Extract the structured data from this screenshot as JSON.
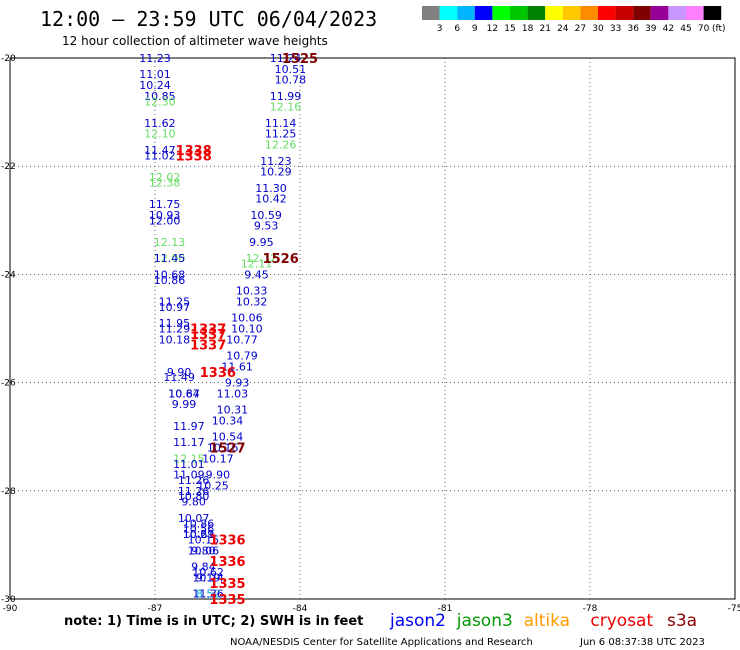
{
  "chart_data": {
    "type": "scatter",
    "title": "12:00 – 23:59 UTC 06/04/2023",
    "subtitle": "12 hour collection of altimeter wave heights",
    "xlim": [
      -90,
      -75
    ],
    "ylim": [
      -30,
      -20
    ],
    "x_ticks": [
      "-90",
      "-87",
      "-84",
      "-81",
      "-78",
      "-75"
    ],
    "y_ticks": [
      "-20",
      "-22",
      "-24",
      "-26",
      "-28",
      "-30"
    ],
    "grid": true,
    "color_scale": {
      "unit": "(ft)",
      "labels": [
        "3",
        "6",
        "9",
        "12",
        "15",
        "18",
        "21",
        "24",
        "27",
        "30",
        "33",
        "36",
        "39",
        "42",
        "45",
        "70"
      ],
      "colors": [
        "#808080",
        "#00ffff",
        "#00b4ff",
        "#0000ff",
        "#00ff00",
        "#00c800",
        "#008000",
        "#ffff00",
        "#ffc800",
        "#ff8c00",
        "#ff0000",
        "#c80000",
        "#800000",
        "#960096",
        "#c896ff",
        "#ff80ff",
        "#000000"
      ]
    },
    "wave_heights": [
      {
        "x": -87.0,
        "y": -20.0,
        "text": "11.23",
        "color": "#0000cc"
      },
      {
        "x": -87.0,
        "y": -20.3,
        "text": "11.01",
        "color": "#0000cc"
      },
      {
        "x": -87.0,
        "y": -20.5,
        "text": "10.24",
        "color": "#0000cc"
      },
      {
        "x": -86.9,
        "y": -20.7,
        "text": "10.85",
        "color": "#0000cc"
      },
      {
        "x": -86.9,
        "y": -20.8,
        "text": "12.30",
        "color": "#66dd66"
      },
      {
        "x": -86.9,
        "y": -21.2,
        "text": "11.62",
        "color": "#0000cc"
      },
      {
        "x": -86.9,
        "y": -21.4,
        "text": "12.10",
        "color": "#66dd66"
      },
      {
        "x": -86.9,
        "y": -21.7,
        "text": "11.47",
        "color": "#0000cc"
      },
      {
        "x": -86.9,
        "y": -21.8,
        "text": "11.02",
        "color": "#0000cc"
      },
      {
        "x": -86.8,
        "y": -22.2,
        "text": "12.02",
        "color": "#66dd66"
      },
      {
        "x": -86.8,
        "y": -22.3,
        "text": "12.38",
        "color": "#66dd66"
      },
      {
        "x": -86.8,
        "y": -22.7,
        "text": "11.75",
        "color": "#0000cc"
      },
      {
        "x": -86.8,
        "y": -22.9,
        "text": "10.93",
        "color": "#0000cc"
      },
      {
        "x": -86.8,
        "y": -23.0,
        "text": "12.00",
        "color": "#0000cc"
      },
      {
        "x": -86.7,
        "y": -23.4,
        "text": "12.13",
        "color": "#66dd66"
      },
      {
        "x": -86.7,
        "y": -23.7,
        "text": "12.00",
        "color": "#66dd66"
      },
      {
        "x": -86.7,
        "y": -23.7,
        "text": "11.45",
        "color": "#0000cc"
      },
      {
        "x": -86.7,
        "y": -24.0,
        "text": "10.68",
        "color": "#0000cc"
      },
      {
        "x": -86.7,
        "y": -24.1,
        "text": "10.86",
        "color": "#0000cc"
      },
      {
        "x": -86.6,
        "y": -24.5,
        "text": "11.25",
        "color": "#0000cc"
      },
      {
        "x": -86.6,
        "y": -24.6,
        "text": "10.97",
        "color": "#0000cc"
      },
      {
        "x": -86.6,
        "y": -24.9,
        "text": "11.95",
        "color": "#0000cc"
      },
      {
        "x": -86.6,
        "y": -25.0,
        "text": "11.29",
        "color": "#0000cc"
      },
      {
        "x": -86.6,
        "y": -25.2,
        "text": "10.18",
        "color": "#0000cc"
      },
      {
        "x": -86.5,
        "y": -25.8,
        "text": "9.90",
        "color": "#0000cc"
      },
      {
        "x": -86.5,
        "y": -25.9,
        "text": "11.49",
        "color": "#0000cc"
      },
      {
        "x": -86.4,
        "y": -26.2,
        "text": "10.87",
        "color": "#0000cc"
      },
      {
        "x": -86.4,
        "y": -26.2,
        "text": "10.64",
        "color": "#0000cc"
      },
      {
        "x": -86.4,
        "y": -26.4,
        "text": "9.99",
        "color": "#0000cc"
      },
      {
        "x": -86.3,
        "y": -26.8,
        "text": "11.97",
        "color": "#0000cc"
      },
      {
        "x": -86.3,
        "y": -27.1,
        "text": "11.17",
        "color": "#0000cc"
      },
      {
        "x": -86.3,
        "y": -27.4,
        "text": "12.15",
        "color": "#66dd66"
      },
      {
        "x": -86.3,
        "y": -27.5,
        "text": "11.01",
        "color": "#0000cc"
      },
      {
        "x": -86.3,
        "y": -27.7,
        "text": "11.09",
        "color": "#0000cc"
      },
      {
        "x": -86.2,
        "y": -27.8,
        "text": "11.26",
        "color": "#0000cc"
      },
      {
        "x": -86.2,
        "y": -28.0,
        "text": "11.26",
        "color": "#0000cc"
      },
      {
        "x": -86.2,
        "y": -28.1,
        "text": "10.80",
        "color": "#0000cc"
      },
      {
        "x": -86.2,
        "y": -28.2,
        "text": "9.80",
        "color": "#0000cc"
      },
      {
        "x": -86.2,
        "y": -28.5,
        "text": "10.07",
        "color": "#0000cc"
      },
      {
        "x": -86.1,
        "y": -28.6,
        "text": "10.86",
        "color": "#0000cc"
      },
      {
        "x": -86.1,
        "y": -28.7,
        "text": "10.56",
        "color": "#0000cc"
      },
      {
        "x": -86.1,
        "y": -28.8,
        "text": "10.69",
        "color": "#0000cc"
      },
      {
        "x": -86.1,
        "y": -28.8,
        "text": "10.21",
        "color": "#0000cc"
      },
      {
        "x": -86.0,
        "y": -28.9,
        "text": "10.15",
        "color": "#0000cc"
      },
      {
        "x": -86.0,
        "y": -29.1,
        "text": "9.80",
        "color": "#0000cc"
      },
      {
        "x": -86.0,
        "y": -29.1,
        "text": "10.06",
        "color": "#0000cc"
      },
      {
        "x": -86.0,
        "y": -29.4,
        "text": "9.84",
        "color": "#0000cc"
      },
      {
        "x": -85.9,
        "y": -29.5,
        "text": "10.62",
        "color": "#0000cc"
      },
      {
        "x": -85.9,
        "y": -29.6,
        "text": "10.74",
        "color": "#0000cc"
      },
      {
        "x": -85.9,
        "y": -29.6,
        "text": "9.19",
        "color": "#0000cc"
      },
      {
        "x": -85.9,
        "y": -29.9,
        "text": "8.52",
        "color": "#00aadd"
      },
      {
        "x": -85.9,
        "y": -29.9,
        "text": "11.36",
        "color": "#0000cc"
      },
      {
        "x": -84.3,
        "y": -20.0,
        "text": "11.24",
        "color": "#0000cc"
      },
      {
        "x": -84.2,
        "y": -20.2,
        "text": "10.51",
        "color": "#0000cc"
      },
      {
        "x": -84.2,
        "y": -20.4,
        "text": "10.78",
        "color": "#0000cc"
      },
      {
        "x": -84.3,
        "y": -20.7,
        "text": "11.99",
        "color": "#0000cc"
      },
      {
        "x": -84.3,
        "y": -20.9,
        "text": "12.16",
        "color": "#66dd66"
      },
      {
        "x": -84.4,
        "y": -21.2,
        "text": "11.14",
        "color": "#0000cc"
      },
      {
        "x": -84.4,
        "y": -21.4,
        "text": "11.25",
        "color": "#0000cc"
      },
      {
        "x": -84.4,
        "y": -21.6,
        "text": "12.26",
        "color": "#66dd66"
      },
      {
        "x": -84.5,
        "y": -21.9,
        "text": "11.23",
        "color": "#0000cc"
      },
      {
        "x": -84.5,
        "y": -22.1,
        "text": "10.29",
        "color": "#0000cc"
      },
      {
        "x": -84.6,
        "y": -22.4,
        "text": "11.30",
        "color": "#0000cc"
      },
      {
        "x": -84.6,
        "y": -22.6,
        "text": "10.42",
        "color": "#0000cc"
      },
      {
        "x": -84.7,
        "y": -22.9,
        "text": "10.59",
        "color": "#0000cc"
      },
      {
        "x": -84.7,
        "y": -23.1,
        "text": "9.53",
        "color": "#0000cc"
      },
      {
        "x": -84.8,
        "y": -23.4,
        "text": "9.95",
        "color": "#0000cc"
      },
      {
        "x": -84.8,
        "y": -23.7,
        "text": "12.12",
        "color": "#66dd66"
      },
      {
        "x": -84.9,
        "y": -23.8,
        "text": "12.11",
        "color": "#66dd66"
      },
      {
        "x": -84.9,
        "y": -24.0,
        "text": "9.45",
        "color": "#0000cc"
      },
      {
        "x": -85.0,
        "y": -24.3,
        "text": "10.33",
        "color": "#0000cc"
      },
      {
        "x": -85.0,
        "y": -24.5,
        "text": "10.32",
        "color": "#0000cc"
      },
      {
        "x": -85.1,
        "y": -24.8,
        "text": "10.06",
        "color": "#0000cc"
      },
      {
        "x": -85.1,
        "y": -25.0,
        "text": "10.10",
        "color": "#0000cc"
      },
      {
        "x": -85.2,
        "y": -25.2,
        "text": "10.77",
        "color": "#0000cc"
      },
      {
        "x": -85.2,
        "y": -25.5,
        "text": "10.79",
        "color": "#0000cc"
      },
      {
        "x": -85.3,
        "y": -25.7,
        "text": "11.61",
        "color": "#0000cc"
      },
      {
        "x": -85.3,
        "y": -26.0,
        "text": "9.93",
        "color": "#0000cc"
      },
      {
        "x": -85.4,
        "y": -26.2,
        "text": "11.03",
        "color": "#0000cc"
      },
      {
        "x": -85.4,
        "y": -26.5,
        "text": "10.31",
        "color": "#0000cc"
      },
      {
        "x": -85.5,
        "y": -26.7,
        "text": "10.34",
        "color": "#0000cc"
      },
      {
        "x": -85.5,
        "y": -27.0,
        "text": "10.54",
        "color": "#0000cc"
      },
      {
        "x": -85.6,
        "y": -27.2,
        "text": "10.16",
        "color": "#0000cc"
      },
      {
        "x": -85.7,
        "y": -27.4,
        "text": "10.17",
        "color": "#0000cc"
      },
      {
        "x": -85.7,
        "y": -27.7,
        "text": "9.90",
        "color": "#0000cc"
      },
      {
        "x": -85.8,
        "y": -27.9,
        "text": "10.25",
        "color": "#0000cc"
      }
    ],
    "swh_labels": [
      {
        "x": -84.0,
        "y": -20.0,
        "text": "1525",
        "color": "#800000"
      },
      {
        "x": -84.4,
        "y": -23.7,
        "text": "1526",
        "color": "#800000"
      },
      {
        "x": -85.5,
        "y": -27.2,
        "text": "1527",
        "color": "#800000"
      },
      {
        "x": -86.2,
        "y": -21.7,
        "text": "1338",
        "color": "#ee0000"
      },
      {
        "x": -86.2,
        "y": -21.8,
        "text": "1338",
        "color": "#ee0000"
      },
      {
        "x": -85.9,
        "y": -25.0,
        "text": "1337",
        "color": "#ee0000"
      },
      {
        "x": -85.9,
        "y": -25.1,
        "text": "1337",
        "color": "#ee0000"
      },
      {
        "x": -85.9,
        "y": -25.3,
        "text": "1337",
        "color": "#ee0000"
      },
      {
        "x": -85.7,
        "y": -25.8,
        "text": "1336",
        "color": "#ee0000"
      },
      {
        "x": -85.5,
        "y": -28.9,
        "text": "1336",
        "color": "#ee0000"
      },
      {
        "x": -85.5,
        "y": -29.3,
        "text": "1336",
        "color": "#ee0000"
      },
      {
        "x": -85.5,
        "y": -29.7,
        "text": "1335",
        "color": "#ee0000"
      },
      {
        "x": -85.5,
        "y": -30.0,
        "text": "1335",
        "color": "#ee0000"
      }
    ],
    "note": "note: 1) Time is in UTC; 2) SWH is in feet",
    "legend": [
      {
        "name": "jason2",
        "color": "#0000ff"
      },
      {
        "name": "jason3",
        "color": "#009900"
      },
      {
        "name": "altika",
        "color": "#ff9900"
      },
      {
        "name": "cryosat",
        "color": "#ee0000"
      },
      {
        "name": "s3a",
        "color": "#880000"
      }
    ],
    "credit": "NOAA/NESDIS Center for Satellite Applications and Research",
    "timestamp": "Jun  6 08:37:38 UTC 2023"
  }
}
